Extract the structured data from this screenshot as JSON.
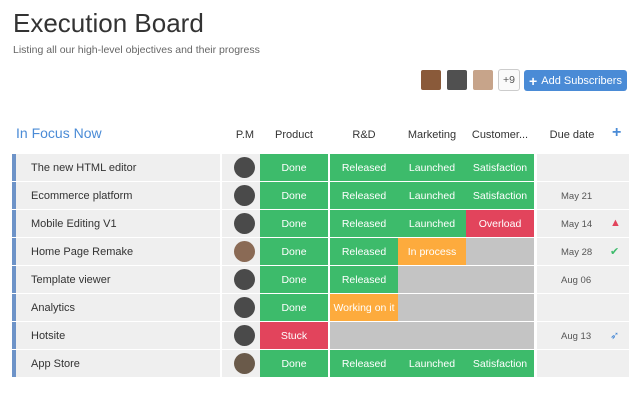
{
  "page": {
    "title": "Execution Board",
    "subtitle": "Listing all our high-level objectives and their progress"
  },
  "subscribers": {
    "more_count": "+9",
    "add_label": "Add Subscribers",
    "avatar_colors": [
      "#8a5a3a",
      "#505050",
      "#c7a48a"
    ]
  },
  "group": {
    "title": "In Focus Now",
    "columns": [
      "P.M",
      "Product",
      "R&D",
      "Marketing",
      "Customer...",
      "Due date"
    ]
  },
  "status_colors": {
    "Done": "#3dbb6b",
    "Released": "#3dbb6b",
    "Launched": "#3dbb6b",
    "Satisfaction": "#3dbb6b",
    "Overload": "#e2445c",
    "Stuck": "#e2445c",
    "In process": "#fdab3d",
    "Working on it": "#fdab3d",
    "": "#c4c4c4"
  },
  "rows": [
    {
      "name": "The new HTML editor",
      "pm_color": "#4a4a4a",
      "product": "Done",
      "rnd": "Released",
      "marketing": "Launched",
      "customer": "Satisfaction",
      "due": "",
      "icon": ""
    },
    {
      "name": "Ecommerce platform",
      "pm_color": "#4a4a4a",
      "product": "Done",
      "rnd": "Released",
      "marketing": "Launched",
      "customer": "Satisfaction",
      "due": "May 21",
      "icon": ""
    },
    {
      "name": "Mobile Editing V1",
      "pm_color": "#4a4a4a",
      "product": "Done",
      "rnd": "Released",
      "marketing": "Launched",
      "customer": "Overload",
      "due": "May 14",
      "icon": "warning-icon"
    },
    {
      "name": "Home Page Remake",
      "pm_color": "#8a6a55",
      "product": "Done",
      "rnd": "Released",
      "marketing": "In process",
      "customer": "",
      "due": "May 28",
      "icon": "check-icon"
    },
    {
      "name": "Template viewer",
      "pm_color": "#4a4a4a",
      "product": "Done",
      "rnd": "Released",
      "marketing": "",
      "customer": "",
      "due": "Aug 06",
      "icon": ""
    },
    {
      "name": "Analytics",
      "pm_color": "#4a4a4a",
      "product": "Done",
      "rnd": "Working on it",
      "marketing": "",
      "customer": "",
      "due": "",
      "icon": ""
    },
    {
      "name": "Hotsite",
      "pm_color": "#4a4a4a",
      "product": "Stuck",
      "rnd": "",
      "marketing": "",
      "customer": "",
      "due": "Aug 13",
      "icon": "rocket-icon"
    },
    {
      "name": "App Store",
      "pm_color": "#6a5a4a",
      "product": "Done",
      "rnd": "Released",
      "marketing": "Launched",
      "customer": "Satisfaction",
      "due": "",
      "icon": ""
    }
  ],
  "icon_colors": {
    "warning-icon": "#e2445c",
    "check-icon": "#3dbb6b",
    "rocket-icon": "#4a8bd6"
  }
}
